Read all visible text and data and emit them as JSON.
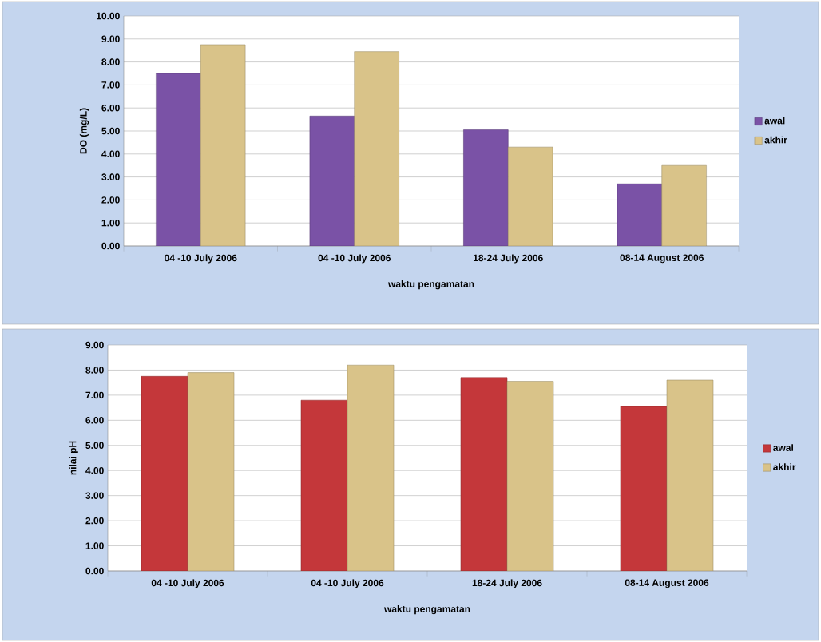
{
  "chart_data": [
    {
      "type": "bar",
      "ylabel": "DO (mg/L)",
      "xlabel": "waktu pengamatan",
      "categories": [
        "04 -10 July 2006",
        "04 -10 July 2006",
        "18-24 July 2006",
        "08-14 August 2006"
      ],
      "series": [
        {
          "name": "awal",
          "color": "#7a52a6",
          "values": [
            7.5,
            5.65,
            5.05,
            2.7
          ]
        },
        {
          "name": "akhir",
          "color": "#d9c389",
          "values": [
            8.75,
            8.45,
            4.3,
            3.5
          ]
        }
      ],
      "ylim": [
        0,
        10
      ],
      "yticks": [
        {
          "value": 0,
          "label": "0.00"
        },
        {
          "value": 1,
          "label": "1.00"
        },
        {
          "value": 2,
          "label": "2.00"
        },
        {
          "value": 3,
          "label": "3.00"
        },
        {
          "value": 4,
          "label": "4.00"
        },
        {
          "value": 5,
          "label": "5.00"
        },
        {
          "value": 6,
          "label": "6.00"
        },
        {
          "value": 7,
          "label": "7.00"
        },
        {
          "value": 8,
          "label": "8.00"
        },
        {
          "value": 9,
          "label": "9.00"
        },
        {
          "value": 10,
          "label": "10.00"
        }
      ],
      "grid": "y",
      "legend": "right"
    },
    {
      "type": "bar",
      "ylabel": "nilai pH",
      "xlabel": "waktu pengamatan",
      "categories": [
        "04 -10 July 2006",
        "04 -10 July 2006",
        "18-24 July 2006",
        "08-14 August 2006"
      ],
      "series": [
        {
          "name": "awal",
          "color": "#c4373a",
          "values": [
            7.75,
            6.8,
            7.7,
            6.55
          ]
        },
        {
          "name": "akhir",
          "color": "#d9c389",
          "values": [
            7.9,
            8.2,
            7.55,
            7.6
          ]
        }
      ],
      "ylim": [
        0,
        9
      ],
      "yticks": [
        {
          "value": 0,
          "label": "0.00"
        },
        {
          "value": 1,
          "label": "1.00"
        },
        {
          "value": 2,
          "label": "2.00"
        },
        {
          "value": 3,
          "label": "3.00"
        },
        {
          "value": 4,
          "label": "4.00"
        },
        {
          "value": 5,
          "label": "5.00"
        },
        {
          "value": 6,
          "label": "6.00"
        },
        {
          "value": 7,
          "label": "7.00"
        },
        {
          "value": 8,
          "label": "8.00"
        },
        {
          "value": 9,
          "label": "9.00"
        }
      ],
      "grid": "y",
      "legend": "right"
    }
  ]
}
